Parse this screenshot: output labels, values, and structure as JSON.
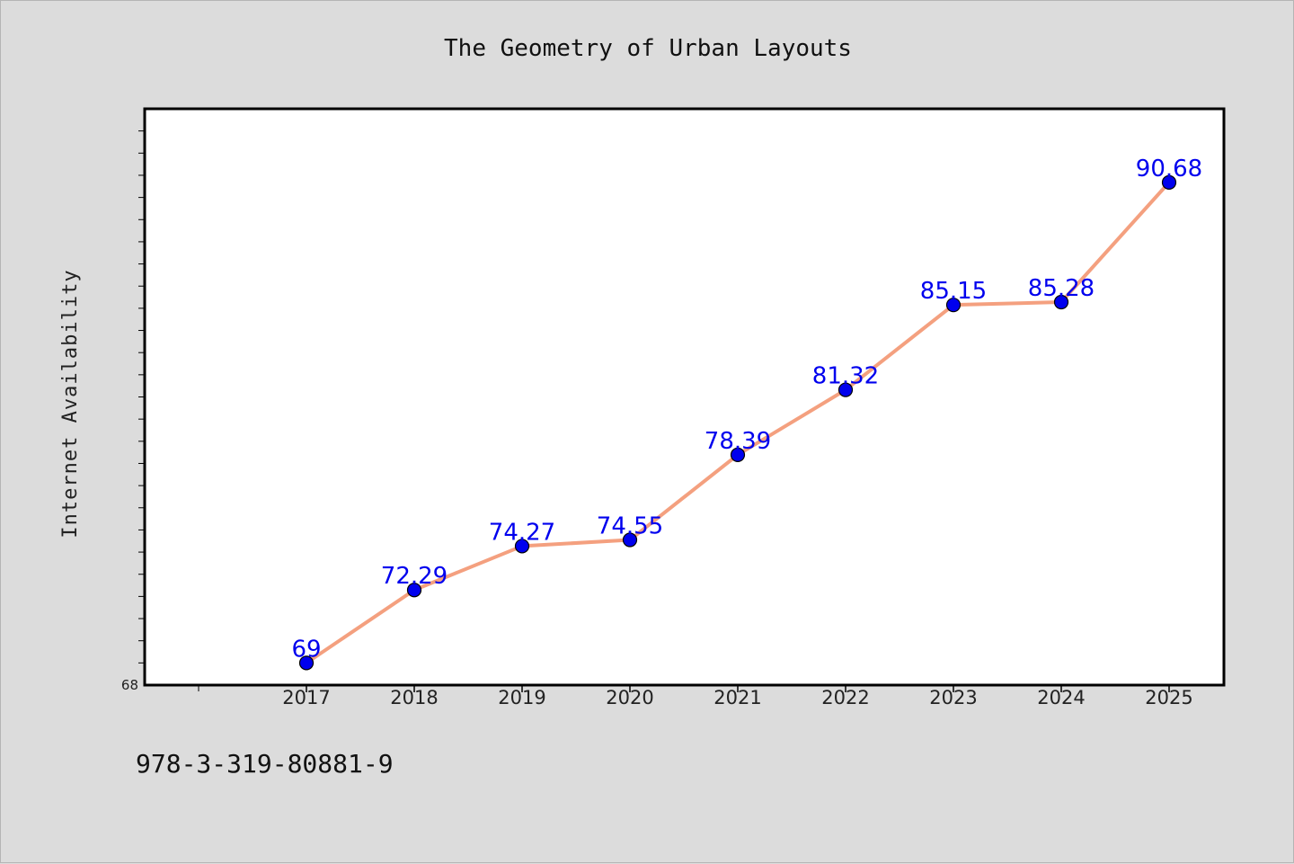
{
  "chart_data": {
    "type": "line",
    "title": "The Geometry of Urban Layouts",
    "xlabel": "",
    "ylabel": "Internet Availability",
    "categories": [
      "2017",
      "2018",
      "2019",
      "2020",
      "2021",
      "2022",
      "2023",
      "2024",
      "2025"
    ],
    "series": [
      {
        "values": [
          69,
          72.29,
          74.27,
          74.55,
          78.39,
          81.32,
          85.15,
          85.28,
          90.68
        ],
        "data_labels": [
          "69",
          "72.29",
          "74.27",
          "74.55",
          "78.39",
          "81.32",
          "85.15",
          "85.28",
          "90.68"
        ],
        "line_color": "#f4a07f",
        "marker_color": "#0000ee"
      }
    ],
    "ylim": [
      68,
      94
    ],
    "y_tick_labels": [
      "68"
    ],
    "grid": false,
    "legend": "none"
  },
  "footnote": "978-3-319-80881-9"
}
